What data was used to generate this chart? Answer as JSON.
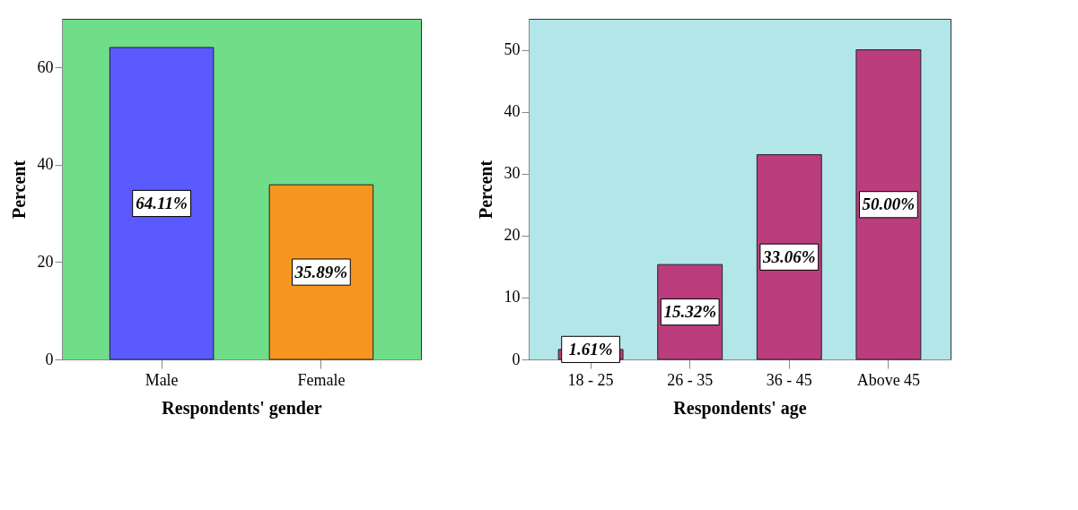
{
  "chart_data": [
    {
      "type": "bar",
      "xlabel": "Respondents' gender",
      "ylabel": "Percent",
      "categories": [
        "Male",
        "Female"
      ],
      "values": [
        64.11,
        35.89
      ],
      "colors": [
        "#5a5aff",
        "#f7961e"
      ],
      "value_labels": [
        "64.11%",
        "35.89%"
      ],
      "ylim": [
        0,
        70
      ],
      "yticks": [
        0,
        20,
        40,
        60
      ],
      "grid": false
    },
    {
      "type": "bar",
      "xlabel": "Respondents' age",
      "ylabel": "Percent",
      "categories": [
        "18 - 25",
        "26 - 35",
        "36 - 45",
        "Above 45"
      ],
      "values": [
        1.61,
        15.32,
        33.06,
        50.0
      ],
      "colors": [
        "#bb3d7d",
        "#bb3d7d",
        "#bb3d7d",
        "#bb3d7d"
      ],
      "value_labels": [
        "1.61%",
        "15.32%",
        "33.06%",
        "50.00%"
      ],
      "ylim": [
        0,
        55
      ],
      "yticks": [
        0,
        10,
        20,
        30,
        40,
        50
      ],
      "grid": false
    }
  ]
}
